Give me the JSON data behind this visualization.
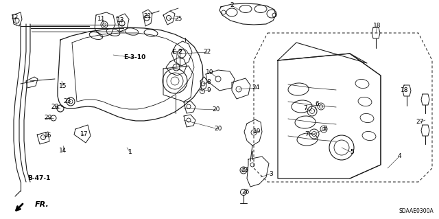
{
  "background_color": "#ffffff",
  "diagram_code": "SDAAE0300A",
  "arrow_label": "FR.",
  "line_color": "#1a1a1a",
  "text_color": "#000000",
  "label_size": 6.5,
  "labels": [
    [
      "1",
      190,
      222
    ],
    [
      "2",
      338,
      8
    ],
    [
      "3",
      395,
      253
    ],
    [
      "4",
      582,
      228
    ],
    [
      "5",
      513,
      222
    ],
    [
      "6",
      462,
      152
    ],
    [
      "6",
      474,
      188
    ],
    [
      "7",
      445,
      158
    ],
    [
      "7",
      447,
      196
    ],
    [
      "8",
      304,
      120
    ],
    [
      "9",
      304,
      131
    ],
    [
      "10",
      306,
      105
    ],
    [
      "11",
      148,
      28
    ],
    [
      "12",
      22,
      25
    ],
    [
      "13",
      176,
      30
    ],
    [
      "14",
      92,
      220
    ],
    [
      "15",
      92,
      125
    ],
    [
      "16",
      70,
      198
    ],
    [
      "17",
      123,
      196
    ],
    [
      "18",
      550,
      38
    ],
    [
      "18",
      590,
      132
    ],
    [
      "19",
      375,
      192
    ],
    [
      "20",
      315,
      160
    ],
    [
      "20",
      318,
      188
    ],
    [
      "21",
      215,
      24
    ],
    [
      "22",
      302,
      76
    ],
    [
      "23",
      98,
      148
    ],
    [
      "23",
      357,
      248
    ],
    [
      "24",
      373,
      128
    ],
    [
      "25",
      260,
      28
    ],
    [
      "26",
      358,
      280
    ],
    [
      "27",
      612,
      178
    ],
    [
      "28",
      80,
      155
    ],
    [
      "29",
      70,
      172
    ]
  ],
  "bold_labels": [
    [
      "E-2",
      258,
      76
    ],
    [
      "E-3-10",
      196,
      84
    ],
    [
      "B-47-1",
      57,
      260
    ]
  ]
}
